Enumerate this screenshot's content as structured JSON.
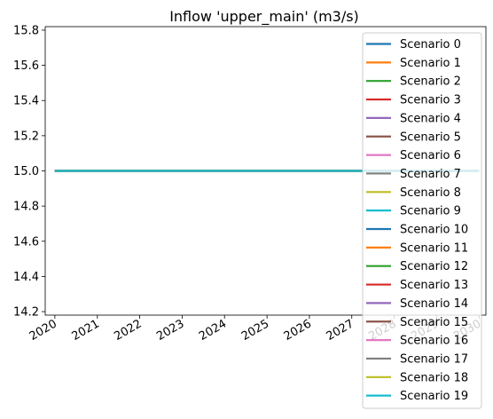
{
  "chart_data": {
    "type": "line",
    "title": "Inflow 'upper_main' (m3/s)",
    "xlabel": "",
    "ylabel": "",
    "x_axis_kind": "date",
    "xlim": [
      "2019-10-10",
      "2030-03-01"
    ],
    "ylim": [
      14.18,
      15.82
    ],
    "x_ticks": [
      "2020",
      "2021",
      "2022",
      "2023",
      "2024",
      "2025",
      "2026",
      "2027",
      "2028",
      "2029",
      "2030"
    ],
    "y_ticks": [
      "14.2",
      "14.4",
      "14.6",
      "14.8",
      "15.0",
      "15.2",
      "15.4",
      "15.6",
      "15.8"
    ],
    "grid": false,
    "legend_position": "upper right",
    "x": [
      "2020-01-01",
      "2030-01-01"
    ],
    "series": [
      {
        "name": "Scenario 0",
        "color": "#1f77b4",
        "values": [
          15.0,
          15.0
        ]
      },
      {
        "name": "Scenario 1",
        "color": "#ff7f0e",
        "values": [
          15.0,
          15.0
        ]
      },
      {
        "name": "Scenario 2",
        "color": "#2ca02c",
        "values": [
          15.0,
          15.0
        ]
      },
      {
        "name": "Scenario 3",
        "color": "#d62728",
        "values": [
          15.0,
          15.0
        ]
      },
      {
        "name": "Scenario 4",
        "color": "#9467bd",
        "values": [
          15.0,
          15.0
        ]
      },
      {
        "name": "Scenario 5",
        "color": "#8c564b",
        "values": [
          15.0,
          15.0
        ]
      },
      {
        "name": "Scenario 6",
        "color": "#e377c2",
        "values": [
          15.0,
          15.0
        ]
      },
      {
        "name": "Scenario 7",
        "color": "#7f7f7f",
        "values": [
          15.0,
          15.0
        ]
      },
      {
        "name": "Scenario 8",
        "color": "#bcbd22",
        "values": [
          15.0,
          15.0
        ]
      },
      {
        "name": "Scenario 9",
        "color": "#17becf",
        "values": [
          15.0,
          15.0
        ]
      },
      {
        "name": "Scenario 10",
        "color": "#1f77b4",
        "values": [
          15.0,
          15.0
        ]
      },
      {
        "name": "Scenario 11",
        "color": "#ff7f0e",
        "values": [
          15.0,
          15.0
        ]
      },
      {
        "name": "Scenario 12",
        "color": "#2ca02c",
        "values": [
          15.0,
          15.0
        ]
      },
      {
        "name": "Scenario 13",
        "color": "#d62728",
        "values": [
          15.0,
          15.0
        ]
      },
      {
        "name": "Scenario 14",
        "color": "#9467bd",
        "values": [
          15.0,
          15.0
        ]
      },
      {
        "name": "Scenario 15",
        "color": "#8c564b",
        "values": [
          15.0,
          15.0
        ]
      },
      {
        "name": "Scenario 16",
        "color": "#e377c2",
        "values": [
          15.0,
          15.0
        ]
      },
      {
        "name": "Scenario 17",
        "color": "#7f7f7f",
        "values": [
          15.0,
          15.0
        ]
      },
      {
        "name": "Scenario 18",
        "color": "#bcbd22",
        "values": [
          15.0,
          15.0
        ]
      },
      {
        "name": "Scenario 19",
        "color": "#17becf",
        "values": [
          15.0,
          15.0
        ]
      }
    ]
  }
}
